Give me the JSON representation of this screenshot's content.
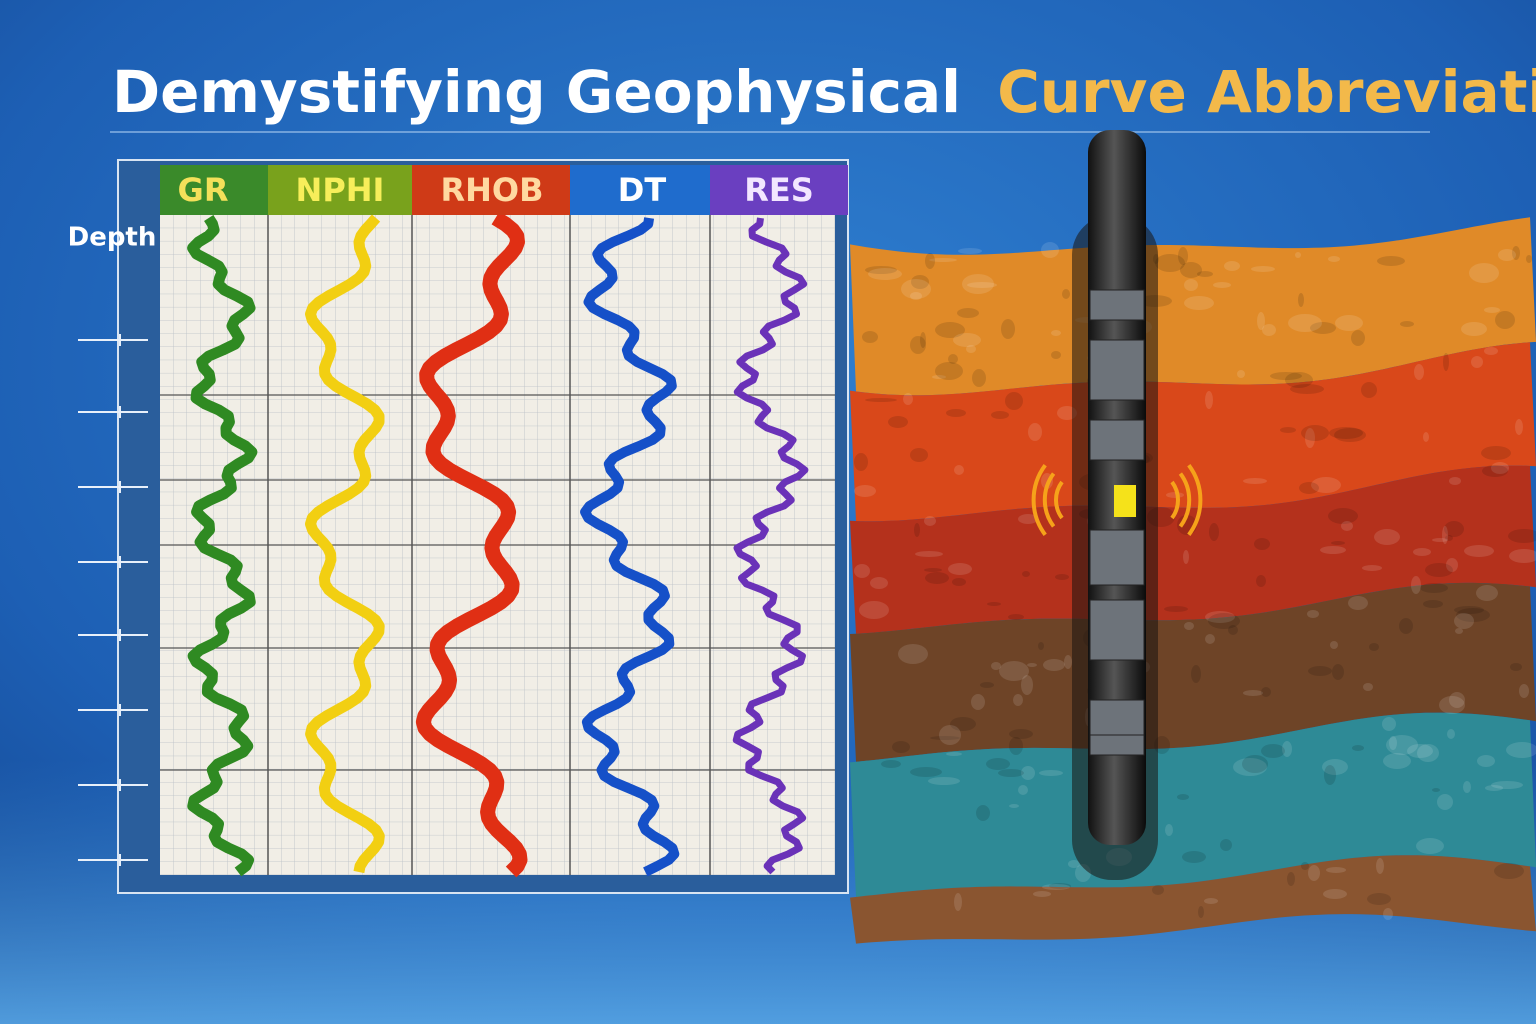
{
  "title": {
    "part1": "Demystifying Geophysical",
    "part2": "Curve Abbreviations"
  },
  "log": {
    "depth_label": "Depth",
    "tracks": [
      "GR",
      "NPHI",
      "RHOB",
      "DT",
      "RES"
    ]
  }
}
